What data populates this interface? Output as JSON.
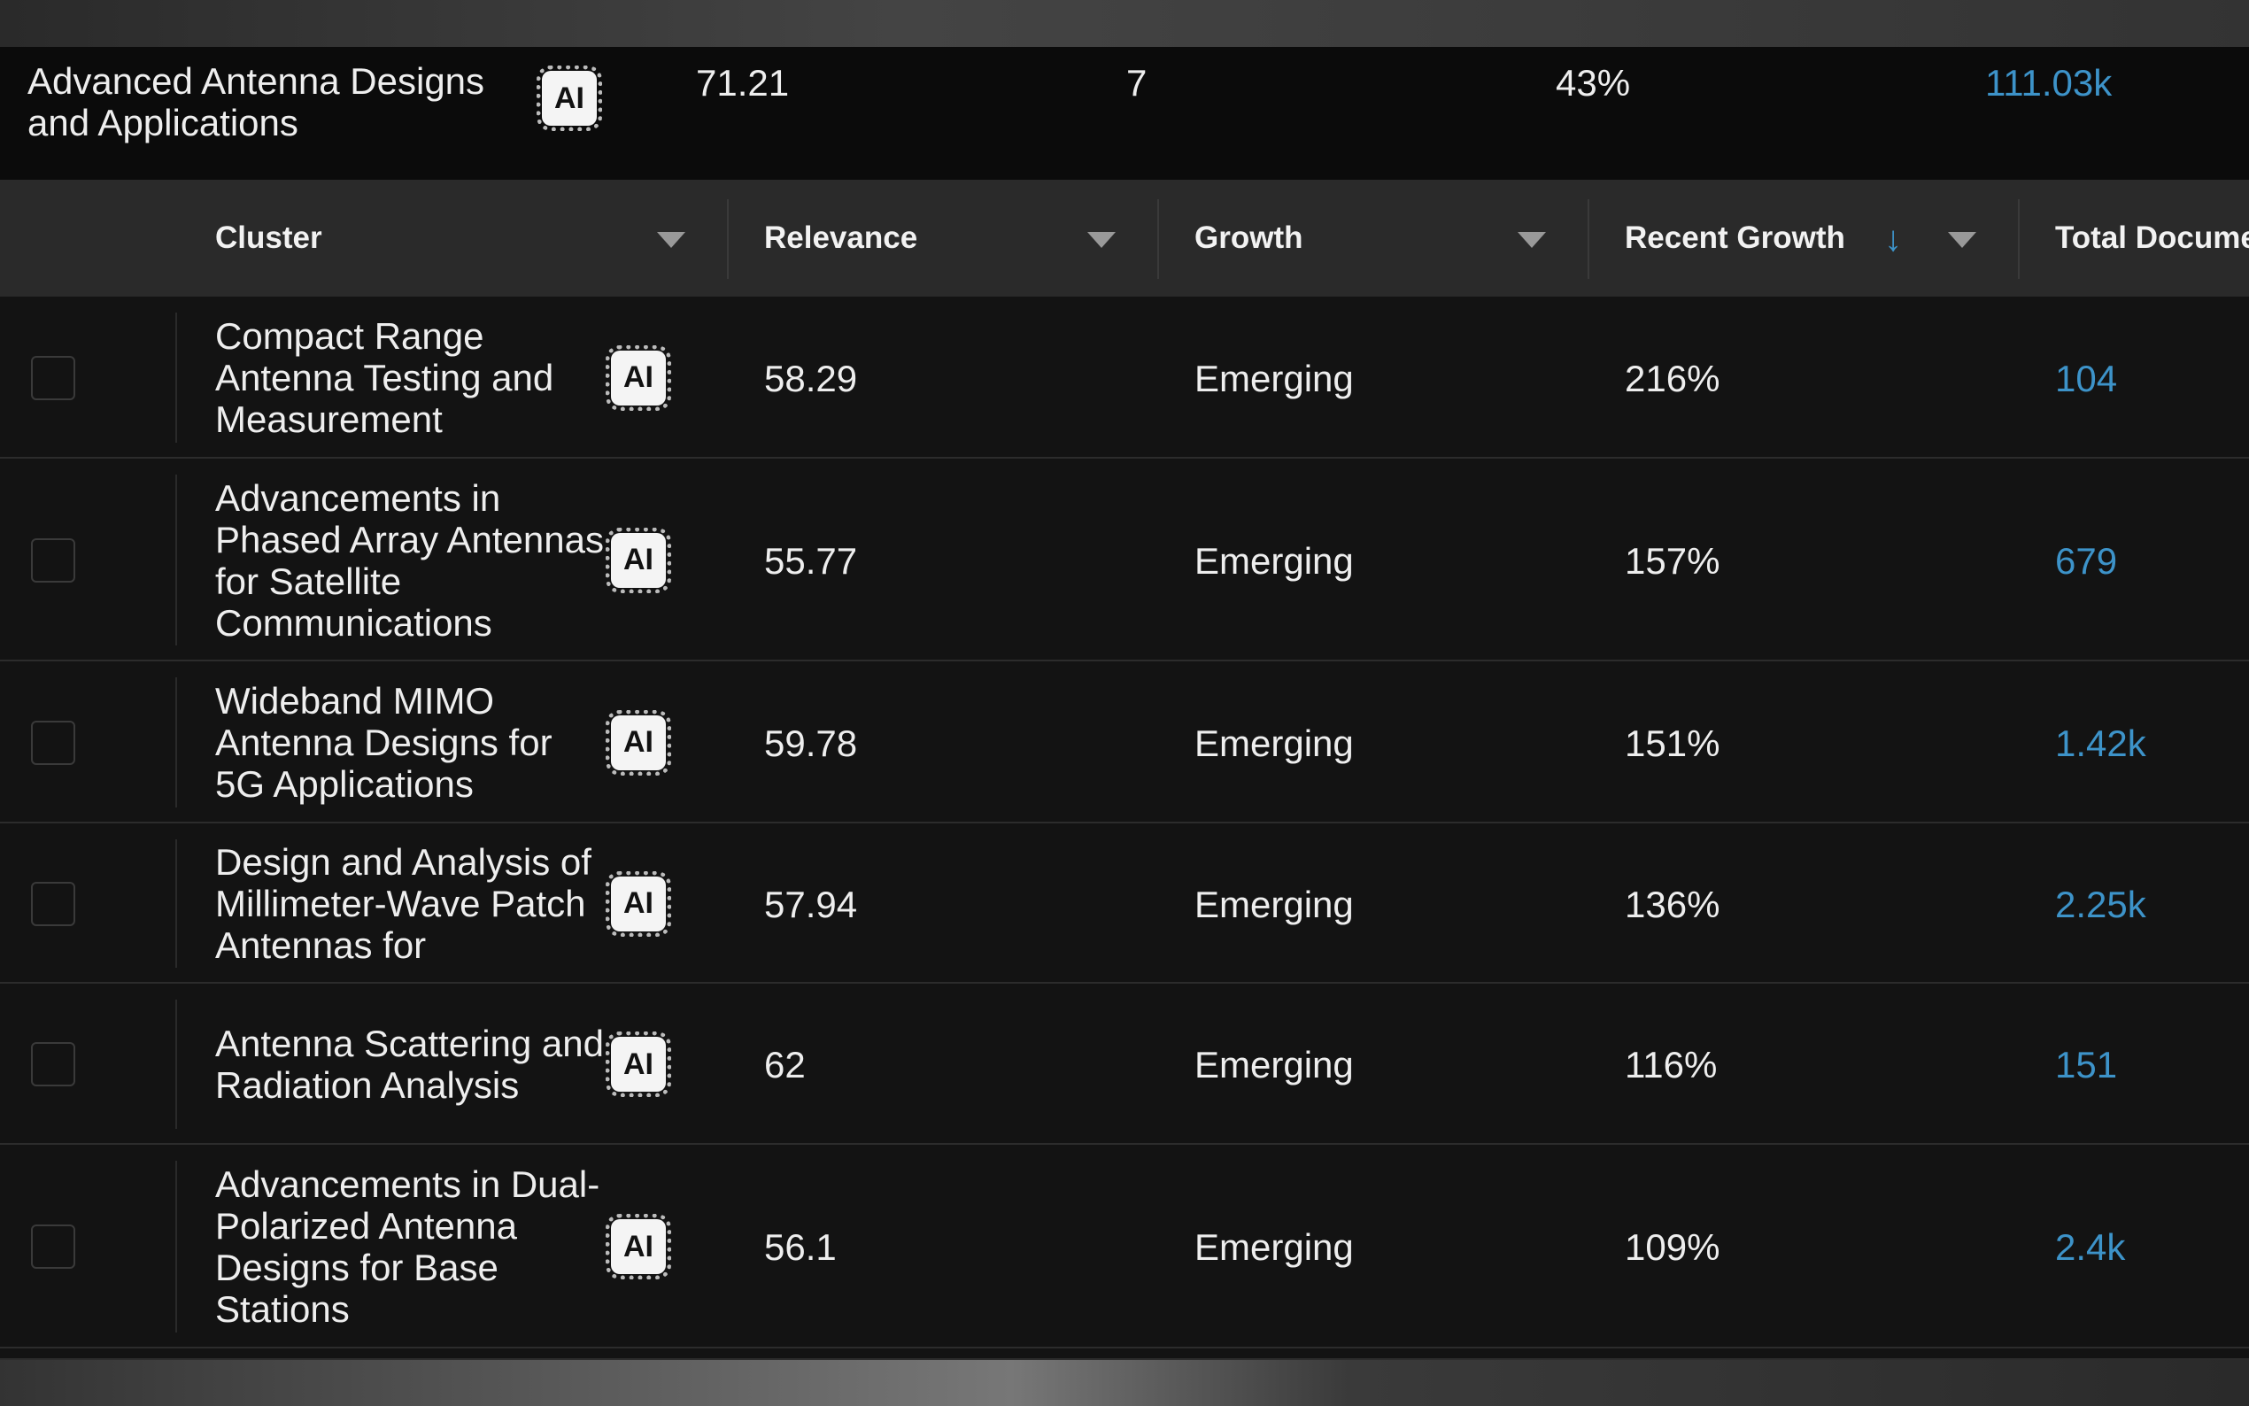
{
  "ai_badge": "AI",
  "group": {
    "name": "Advanced Antenna Designs and Applications",
    "relevance": "71.21",
    "growth": "7",
    "recent_growth": "43%",
    "total_documents": "111.03k"
  },
  "table": {
    "headers": [
      "Cluster",
      "Relevance",
      "Growth",
      "Recent Growth",
      "Total Docume"
    ],
    "rows": [
      [
        "Compact Range Antenna Testing and Measurement",
        "58.29",
        "Emerging",
        "216%",
        "104"
      ],
      [
        "Advancements in Phased Array Antennas for Satellite Communications",
        "55.77",
        "Emerging",
        "157%",
        "679"
      ],
      [
        "Wideband MIMO Antenna Designs for 5G Applications",
        "59.78",
        "Emerging",
        "151%",
        "1.42k"
      ],
      [
        "Design and Analysis of Millimeter-Wave Patch Antennas for",
        "57.94",
        "Emerging",
        "136%",
        "2.25k"
      ],
      [
        "Antenna Scattering and Radiation Analysis",
        "62",
        "Emerging",
        "116%",
        "151"
      ],
      [
        "Advancements in Dual-Polarized Antenna Designs for Base Stations",
        "56.1",
        "Emerging",
        "109%",
        "2.4k"
      ]
    ]
  }
}
